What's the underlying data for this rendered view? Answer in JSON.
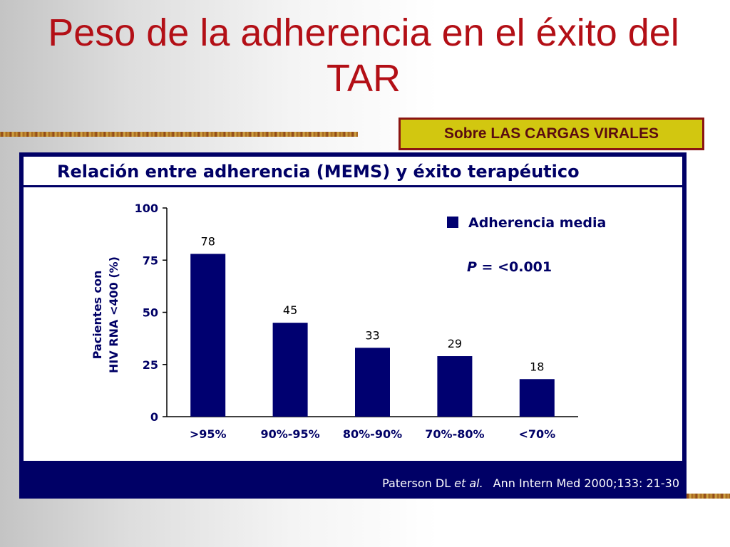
{
  "slide": {
    "title": "Peso de la adherencia en el éxito del TAR",
    "badge": "Sobre LAS CARGAS VIRALES"
  },
  "colors": {
    "title": "#b30f16",
    "badge_fill": "#d2c710",
    "badge_border": "#8b1512",
    "frame": "#000066",
    "bar": "#000070"
  },
  "chart_data": {
    "type": "bar",
    "title": "Relación entre adherencia (MEMS) y éxito terapéutico",
    "xlabel": "",
    "ylabel_lines": [
      "Pacientes con",
      "HIV RNA <400 (%)"
    ],
    "categories": [
      ">95%",
      "90%-95%",
      "80%-90%",
      "70%-80%",
      "<70%"
    ],
    "series": [
      {
        "name": "Adherencia media",
        "values": [
          78,
          45,
          33,
          29,
          18
        ]
      }
    ],
    "value_labels": [
      "78",
      "45",
      "33",
      "29",
      "18"
    ],
    "ylim": [
      0,
      100
    ],
    "yticks": [
      0,
      25,
      50,
      75,
      100
    ],
    "grid": false,
    "legend_position": "top-right",
    "annotation": {
      "italic": "P",
      "rest": " = <0.001"
    },
    "citation": {
      "author": "Paterson DL",
      "etal": "et al.",
      "source": "Ann Intern Med 2000;133: 21-30"
    }
  }
}
